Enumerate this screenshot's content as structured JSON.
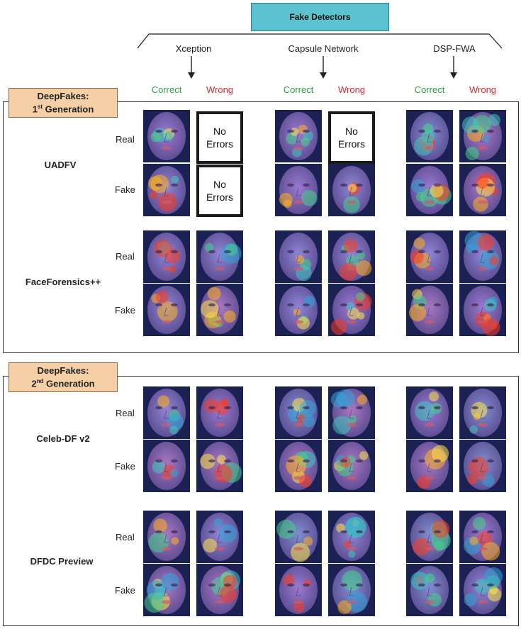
{
  "header": {
    "title": "Fake Detectors"
  },
  "detectors": [
    {
      "name": "Xception",
      "correct": "Correct",
      "wrong": "Wrong"
    },
    {
      "name": "Capsule Network",
      "correct": "Correct",
      "wrong": "Wrong"
    },
    {
      "name": "DSP-FWA",
      "correct": "Correct",
      "wrong": "Wrong"
    }
  ],
  "generations": [
    {
      "title": "DeepFakes:",
      "ordinal": "1",
      "suffix": "st",
      "label": "Generation"
    },
    {
      "title": "DeepFakes:",
      "ordinal": "2",
      "suffix": "nd",
      "label": "Generation"
    }
  ],
  "datasets": [
    {
      "name": "UADFV",
      "rows": [
        "Real",
        "Fake"
      ]
    },
    {
      "name": "FaceForensics++",
      "rows": [
        "Real",
        "Fake"
      ]
    },
    {
      "name": "Celeb-DF v2",
      "rows": [
        "Real",
        "Fake"
      ]
    },
    {
      "name": "DFDC Preview",
      "rows": [
        "Real",
        "Fake"
      ]
    }
  ],
  "no_errors": {
    "line1": "No",
    "line2": "Errors"
  },
  "colors": {
    "header_box": "#5bc3cf",
    "generation_box": "#f5d0a6",
    "correct": "#2ea043",
    "wrong": "#d9252b"
  }
}
